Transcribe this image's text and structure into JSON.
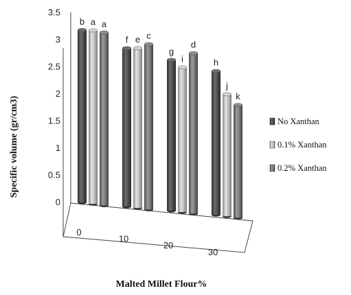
{
  "chart_data": {
    "type": "bar",
    "title": "",
    "xlabel": "Malted Millet Flour%",
    "ylabel": "Specific volume (gr/cm3)",
    "categories": [
      "0",
      "10",
      "20",
      "30"
    ],
    "ylim": [
      0,
      3.5
    ],
    "yticks": [
      "0",
      "0.5",
      "1",
      "1.5",
      "2",
      "2.5",
      "3",
      "3.5"
    ],
    "series": [
      {
        "name": "No Xanthan",
        "color": "#595959",
        "values": [
          3.18,
          2.92,
          2.78,
          2.65
        ],
        "labels": [
          "b",
          "f",
          "g",
          "h"
        ]
      },
      {
        "name": "0.1% Xanthan",
        "color": "#b8b8b8",
        "values": [
          3.2,
          2.95,
          2.67,
          2.25
        ],
        "labels": [
          "a",
          "e",
          "i",
          "j"
        ]
      },
      {
        "name": "0.2% Xanthan",
        "color": "#7e7e7e",
        "values": [
          3.19,
          3.05,
          2.96,
          2.08
        ],
        "labels": [
          "a",
          "c",
          "d",
          "k"
        ]
      }
    ],
    "grid": false,
    "legend": "right"
  }
}
